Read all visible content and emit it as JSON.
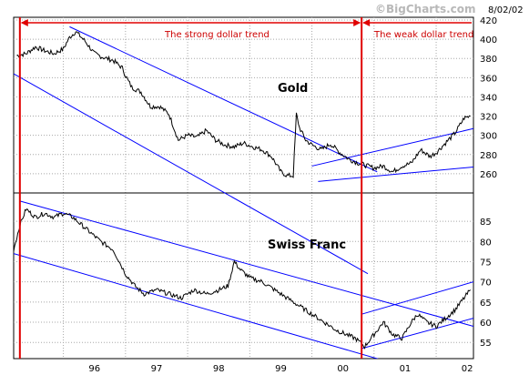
{
  "header": {
    "brand": "©BigCharts.com",
    "date": "8/02/02"
  },
  "annotations": {
    "strong": "The strong dollar trend",
    "weak": "The weak dollar trend"
  },
  "colors": {
    "price_line": "#000000",
    "trend_channel": "#0000ff",
    "vertical_marker": "#e00000",
    "annotation": "#cc0000",
    "grid": "#a8a8a8",
    "background": "#ffffff"
  },
  "chart_data": [
    {
      "type": "line",
      "title": "Gold",
      "x_ticks": [
        "96",
        "97",
        "98",
        "99",
        "00",
        "01",
        "02"
      ],
      "y_ticks": [
        260,
        280,
        300,
        320,
        340,
        360,
        380,
        400,
        420
      ],
      "ylim": [
        240,
        420
      ],
      "xlim": [
        1995.2,
        2002.6
      ],
      "grid": true,
      "series": [
        {
          "x": [
            1995.25,
            1995.4,
            1995.55,
            1995.7,
            1995.85,
            1996.0,
            1996.1,
            1996.2,
            1996.35,
            1996.5,
            1996.65,
            1996.8,
            1996.95,
            1997.0,
            1997.1,
            1997.25,
            1997.4,
            1997.55,
            1997.7,
            1997.85,
            1998.0,
            1998.15,
            1998.3,
            1998.45,
            1998.6,
            1998.75,
            1998.9,
            1999.05,
            1999.2,
            1999.35,
            1999.5,
            1999.6,
            1999.7,
            1999.75,
            1999.8,
            1999.9,
            2000.0,
            2000.15,
            2000.3,
            2000.45,
            2000.6,
            2000.75,
            2000.9,
            2001.0,
            2001.15,
            2001.3,
            2001.45,
            2001.6,
            2001.75,
            2001.9,
            2002.0,
            2002.15,
            2002.3,
            2002.45,
            2002.55
          ],
          "y": [
            383,
            385,
            392,
            388,
            385,
            390,
            402,
            408,
            398,
            385,
            381,
            378,
            370,
            362,
            350,
            345,
            330,
            330,
            322,
            295,
            300,
            298,
            305,
            295,
            290,
            288,
            292,
            288,
            285,
            278,
            262,
            258,
            258,
            322,
            308,
            295,
            290,
            285,
            291,
            282,
            275,
            271,
            268,
            266,
            268,
            262,
            268,
            271,
            285,
            278,
            282,
            292,
            302,
            318,
            320
          ]
        }
      ],
      "channels": [
        {
          "x1": 1996.1,
          "y1": 413,
          "x2": 2001.05,
          "y2": 262
        },
        {
          "x1": 1995.2,
          "y1": 364,
          "x2": 2000.9,
          "y2": 156
        },
        {
          "x1": 2000.0,
          "y1": 268,
          "x2": 2002.6,
          "y2": 307
        },
        {
          "x1": 2000.1,
          "y1": 252,
          "x2": 2002.6,
          "y2": 267
        }
      ]
    },
    {
      "type": "line",
      "title": "Swiss Franc",
      "y_ticks": [
        55,
        60,
        65,
        70,
        75,
        80,
        85
      ],
      "ylim": [
        51,
        92
      ],
      "xlim": [
        1995.2,
        2002.6
      ],
      "grid": true,
      "series": [
        {
          "x": [
            1995.2,
            1995.3,
            1995.4,
            1995.55,
            1995.7,
            1995.85,
            1996.0,
            1996.15,
            1996.3,
            1996.45,
            1996.6,
            1996.8,
            1997.0,
            1997.15,
            1997.3,
            1997.5,
            1997.7,
            1997.9,
            1998.1,
            1998.3,
            1998.5,
            1998.65,
            1998.75,
            1998.85,
            1999.0,
            1999.2,
            1999.4,
            1999.6,
            1999.8,
            2000.0,
            2000.2,
            2000.4,
            2000.55,
            2000.7,
            2000.85,
            2000.95,
            2001.05,
            2001.15,
            2001.3,
            2001.45,
            2001.6,
            2001.7,
            2001.85,
            2002.0,
            2002.15,
            2002.3,
            2002.45,
            2002.55
          ],
          "y": [
            78,
            84,
            88,
            86,
            87,
            86,
            87,
            86,
            84,
            82,
            80,
            78,
            72,
            69,
            67,
            68,
            67,
            66,
            68,
            67,
            68,
            69,
            75,
            73,
            71,
            70,
            68,
            66,
            64,
            62,
            60,
            58,
            57,
            56,
            54,
            56,
            58,
            60,
            57,
            56,
            60,
            62,
            60,
            59,
            61,
            63,
            66,
            68
          ]
        }
      ],
      "channels": [
        {
          "x1": 1995.3,
          "y1": 90,
          "x2": 2002.6,
          "y2": 59
        },
        {
          "x1": 1995.2,
          "y1": 77,
          "x2": 2001.5,
          "y2": 49
        },
        {
          "x1": 2000.8,
          "y1": 62,
          "x2": 2002.6,
          "y2": 70
        },
        {
          "x1": 2000.8,
          "y1": 53.5,
          "x2": 2002.6,
          "y2": 61
        }
      ]
    }
  ],
  "markers": {
    "strong_start": 1995.3,
    "strong_end": 2000.8
  }
}
